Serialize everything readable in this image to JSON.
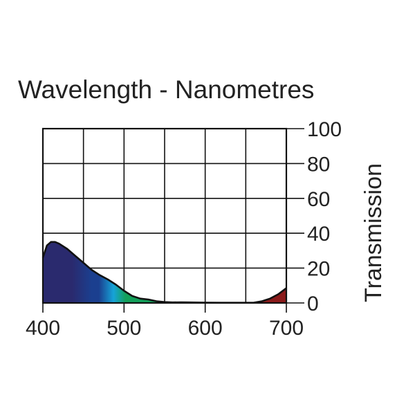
{
  "chart_data": {
    "type": "area",
    "title": "Wavelength - Nanometres",
    "xlabel": "",
    "ylabel": "Transmission",
    "xlim": [
      400,
      700
    ],
    "ylim": [
      0,
      100
    ],
    "x_ticks": [
      400,
      500,
      600,
      700
    ],
    "y_ticks": [
      0,
      20,
      40,
      60,
      80,
      100
    ],
    "grid": true,
    "series": [
      {
        "x": [
          400,
          405,
          410,
          415,
          420,
          430,
          440,
          450,
          460,
          470,
          480,
          490,
          500,
          510,
          520,
          530,
          540,
          550,
          560,
          570,
          580,
          600,
          620,
          640,
          660,
          670,
          680,
          690,
          700
        ],
        "values": [
          26,
          33,
          35,
          35,
          34,
          31,
          27,
          23,
          19,
          16,
          13.5,
          10.5,
          7,
          4,
          2.5,
          2,
          1,
          0.5,
          0.3,
          0.4,
          0.3,
          0.2,
          0.1,
          0.1,
          0.2,
          1,
          2.5,
          5,
          8.5
        ]
      }
    ],
    "spectrum_colors": {
      "violet": "#2a2a6e",
      "blue": "#1b3f8f",
      "cyan": "#16a3d8",
      "green": "#13a05a",
      "red": "#8b1a1a"
    }
  }
}
